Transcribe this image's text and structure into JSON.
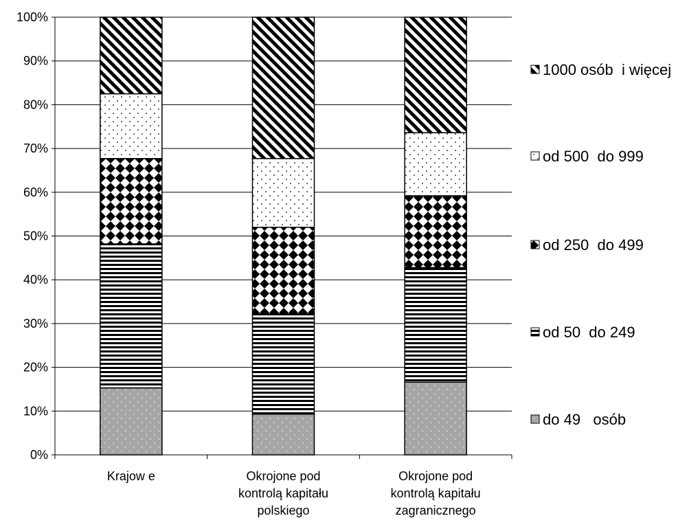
{
  "chart_data": {
    "type": "bar",
    "stacked": true,
    "percent": true,
    "categories": [
      [
        "Krajow e"
      ],
      [
        "Okrojone pod",
        "kontrolą kapitału",
        "polskiego"
      ],
      [
        "Okrojone pod",
        "kontrolą kapitału",
        "zagranicznego"
      ]
    ],
    "series": [
      {
        "name": "do 49   osób",
        "values": [
          15.3,
          9.3,
          16.6
        ],
        "pattern": "dots-gray"
      },
      {
        "name": "od 50  do 249",
        "values": [
          32.9,
          22.9,
          26.2
        ],
        "pattern": "hstripes"
      },
      {
        "name": "od 250  do 499",
        "values": [
          19.5,
          19.8,
          16.4
        ],
        "pattern": "diamonds"
      },
      {
        "name": "od 500  do 999",
        "values": [
          14.8,
          15.7,
          14.4
        ],
        "pattern": "dots-white"
      },
      {
        "name": "1000 osób  i więcej",
        "values": [
          17.5,
          32.3,
          26.4
        ],
        "pattern": "diagonal"
      }
    ],
    "yticks": [
      "0%",
      "10%",
      "20%",
      "30%",
      "40%",
      "50%",
      "60%",
      "70%",
      "80%",
      "90%",
      "100%"
    ],
    "ylim": [
      0,
      100
    ],
    "grid": true,
    "legend": "right"
  }
}
